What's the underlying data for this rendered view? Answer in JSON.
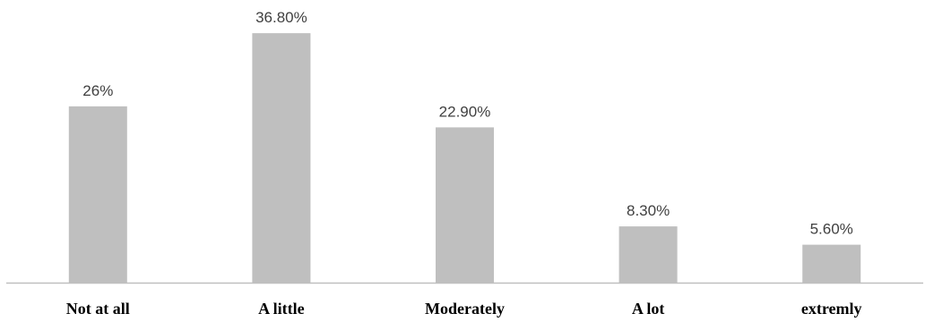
{
  "chart_data": {
    "type": "bar",
    "title": "",
    "xlabel": "",
    "ylabel": "",
    "categories": [
      "Not at all",
      "A little",
      "Moderately",
      "A lot",
      "extremly"
    ],
    "values": [
      26,
      36.8,
      22.9,
      8.3,
      5.6
    ],
    "data_labels": [
      "26%",
      "36.80%",
      "22.90%",
      "8.30%",
      "5.60%"
    ],
    "ylim": [
      0,
      38
    ],
    "grid": false,
    "legend": "none",
    "colors": {
      "bar": "#bfbfbf",
      "axis": "#bfbfbf"
    }
  }
}
